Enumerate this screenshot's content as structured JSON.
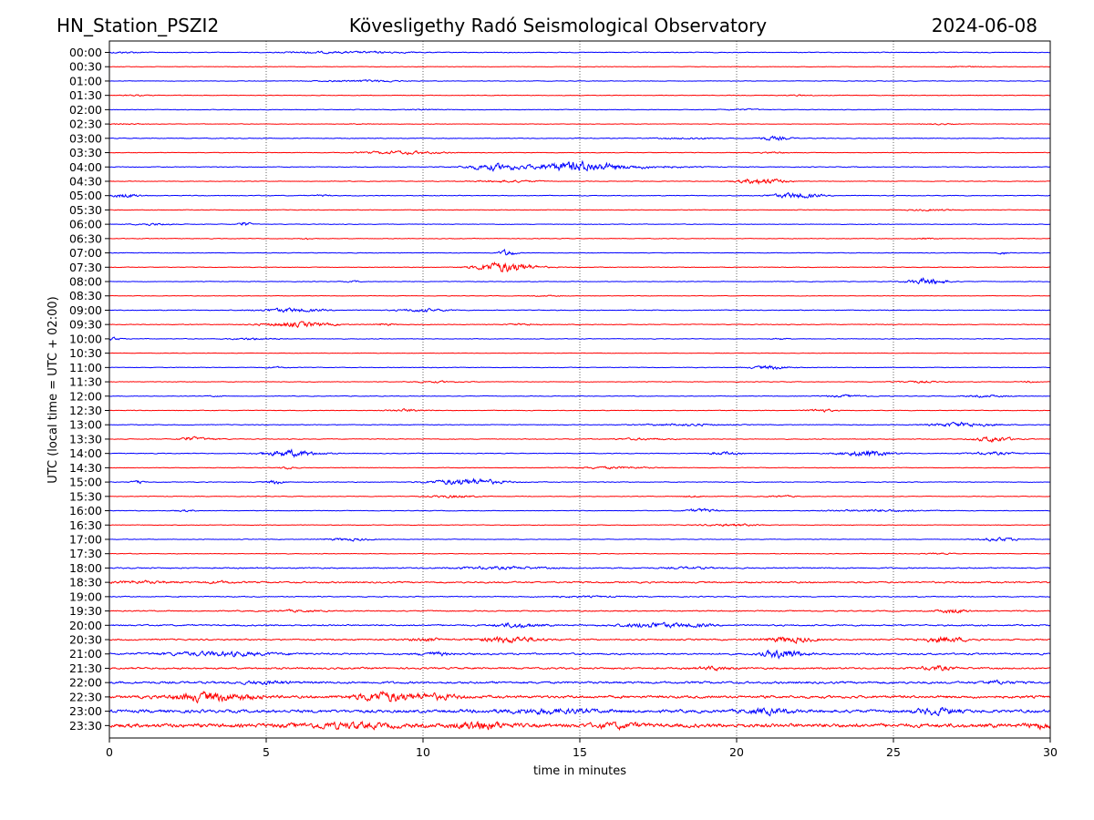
{
  "header": {
    "station": "HN_Station_PSZI2",
    "observatory": "Kövesligethy Radó Seismological Observatory",
    "date": "2024-06-08"
  },
  "chart_data": {
    "type": "line",
    "subtype": "helicorder",
    "title": "Kövesligethy Radó Seismological Observatory",
    "xlabel": "time in minutes",
    "ylabel": "UTC (local time = UTC + 02:00)",
    "xlim": [
      0,
      30
    ],
    "xticks": [
      0,
      5,
      10,
      15,
      20,
      25,
      30
    ],
    "x_gridlines": [
      5,
      10,
      15,
      20,
      25
    ],
    "line_colors": [
      "#0000ff",
      "#ff0000"
    ],
    "rows": [
      {
        "label": "00:00",
        "noise": 0.6,
        "events": [
          [
            0.4,
            1.5,
            0.5
          ],
          [
            6.5,
            2.0,
            0.6
          ],
          [
            8.5,
            2.5,
            0.6
          ]
        ]
      },
      {
        "label": "00:30",
        "noise": 0.4,
        "events": [
          [
            27.2,
            1.2,
            0.4
          ]
        ]
      },
      {
        "label": "01:00",
        "noise": 0.5,
        "events": [
          [
            7.5,
            2.0,
            0.5
          ],
          [
            8.6,
            1.5,
            0.6
          ]
        ]
      },
      {
        "label": "01:30",
        "noise": 0.5,
        "events": [
          [
            0.8,
            1.0,
            0.4
          ],
          [
            22.0,
            1.0,
            0.4
          ]
        ]
      },
      {
        "label": "02:00",
        "noise": 0.5,
        "events": [
          [
            10.0,
            1.2,
            0.4
          ],
          [
            20.2,
            1.2,
            0.5
          ]
        ]
      },
      {
        "label": "02:30",
        "noise": 0.4,
        "events": [
          [
            0.5,
            1.0,
            0.4
          ],
          [
            8.0,
            1.0,
            0.3
          ],
          [
            26.5,
            1.0,
            0.4
          ]
        ]
      },
      {
        "label": "03:00",
        "noise": 0.6,
        "events": [
          [
            18.5,
            2.0,
            0.6
          ],
          [
            21.2,
            1.0,
            1.5
          ]
        ]
      },
      {
        "label": "03:30",
        "noise": 0.5,
        "events": [
          [
            9.4,
            2.5,
            1.2
          ],
          [
            21.2,
            0.8,
            0.6
          ]
        ]
      },
      {
        "label": "04:00",
        "noise": 0.6,
        "events": [
          [
            12.3,
            1.8,
            2.5
          ],
          [
            14.9,
            2.5,
            4.0
          ],
          [
            17.0,
            3.0,
            0.8
          ]
        ]
      },
      {
        "label": "04:30",
        "noise": 0.5,
        "events": [
          [
            12.7,
            2.0,
            0.8
          ],
          [
            20.8,
            1.5,
            2.2
          ]
        ]
      },
      {
        "label": "05:00",
        "noise": 0.6,
        "events": [
          [
            0.5,
            1.0,
            1.5
          ],
          [
            21.9,
            1.5,
            2.2
          ],
          [
            6.8,
            0.5,
            0.6
          ]
        ]
      },
      {
        "label": "05:30",
        "noise": 0.5,
        "events": [
          [
            26.2,
            1.5,
            0.6
          ]
        ]
      },
      {
        "label": "06:00",
        "noise": 0.5,
        "events": [
          [
            1.4,
            1.2,
            0.8
          ],
          [
            4.3,
            0.4,
            1.8
          ]
        ]
      },
      {
        "label": "06:30",
        "noise": 0.5,
        "events": [
          [
            6.3,
            0.4,
            0.6
          ],
          [
            26.0,
            0.8,
            0.5
          ]
        ]
      },
      {
        "label": "07:00",
        "noise": 0.5,
        "events": [
          [
            12.7,
            0.5,
            2.5
          ],
          [
            28.5,
            0.4,
            1.0
          ]
        ]
      },
      {
        "label": "07:30",
        "noise": 0.5,
        "events": [
          [
            12.6,
            1.8,
            4.0
          ]
        ]
      },
      {
        "label": "08:00",
        "noise": 0.5,
        "events": [
          [
            7.8,
            0.5,
            0.5
          ],
          [
            26.1,
            1.2,
            2.5
          ]
        ]
      },
      {
        "label": "08:30",
        "noise": 0.4,
        "events": [
          [
            14.0,
            1.0,
            0.4
          ]
        ]
      },
      {
        "label": "09:00",
        "noise": 0.6,
        "events": [
          [
            5.8,
            2.0,
            1.5
          ],
          [
            10.0,
            1.5,
            1.2
          ]
        ]
      },
      {
        "label": "09:30",
        "noise": 0.6,
        "events": [
          [
            6.0,
            2.2,
            1.8
          ],
          [
            8.8,
            0.6,
            0.8
          ],
          [
            13.2,
            1.0,
            0.6
          ]
        ]
      },
      {
        "label": "10:00",
        "noise": 0.5,
        "events": [
          [
            0.1,
            0.5,
            1.2
          ],
          [
            4.6,
            1.5,
            0.8
          ],
          [
            21.4,
            0.5,
            0.6
          ]
        ]
      },
      {
        "label": "10:30",
        "noise": 0.4,
        "events": []
      },
      {
        "label": "11:00",
        "noise": 0.5,
        "events": [
          [
            5.3,
            0.8,
            0.5
          ],
          [
            21.1,
            1.2,
            1.5
          ]
        ]
      },
      {
        "label": "11:30",
        "noise": 0.5,
        "events": [
          [
            10.4,
            1.5,
            0.6
          ],
          [
            25.8,
            1.5,
            0.7
          ],
          [
            29.4,
            0.5,
            0.6
          ]
        ]
      },
      {
        "label": "12:00",
        "noise": 0.5,
        "events": [
          [
            3.4,
            0.4,
            0.6
          ],
          [
            23.5,
            1.5,
            0.8
          ],
          [
            28.0,
            1.5,
            0.8
          ]
        ]
      },
      {
        "label": "12:30",
        "noise": 0.5,
        "events": [
          [
            9.5,
            1.2,
            1.0
          ],
          [
            22.7,
            0.8,
            1.2
          ]
        ]
      },
      {
        "label": "13:00",
        "noise": 0.6,
        "events": [
          [
            18.3,
            2.5,
            0.8
          ],
          [
            27.2,
            2.0,
            1.6
          ]
        ]
      },
      {
        "label": "13:30",
        "noise": 0.6,
        "events": [
          [
            2.5,
            0.6,
            1.2
          ],
          [
            3.0,
            1.0,
            0.8
          ],
          [
            17.0,
            2.0,
            0.6
          ],
          [
            28.2,
            1.2,
            2.0
          ]
        ]
      },
      {
        "label": "14:00",
        "noise": 0.6,
        "events": [
          [
            5.8,
            1.8,
            2.5
          ],
          [
            19.6,
            1.0,
            1.2
          ],
          [
            24.1,
            1.6,
            2.3
          ],
          [
            28.2,
            1.5,
            1.0
          ]
        ]
      },
      {
        "label": "14:30",
        "noise": 0.5,
        "events": [
          [
            5.7,
            0.5,
            1.0
          ],
          [
            16.0,
            2.5,
            0.8
          ]
        ]
      },
      {
        "label": "15:00",
        "noise": 0.6,
        "events": [
          [
            0.9,
            0.4,
            1.0
          ],
          [
            5.3,
            0.6,
            1.5
          ],
          [
            11.4,
            2.2,
            2.5
          ]
        ]
      },
      {
        "label": "15:30",
        "noise": 0.5,
        "events": [
          [
            10.9,
            1.5,
            1.0
          ],
          [
            18.6,
            0.8,
            0.6
          ],
          [
            21.4,
            1.0,
            0.6
          ]
        ]
      },
      {
        "label": "16:00",
        "noise": 0.5,
        "events": [
          [
            2.4,
            0.8,
            0.6
          ],
          [
            18.9,
            1.0,
            1.4
          ],
          [
            24.5,
            3.0,
            0.8
          ]
        ]
      },
      {
        "label": "16:30",
        "noise": 0.5,
        "events": [
          [
            19.8,
            2.0,
            0.8
          ]
        ]
      },
      {
        "label": "17:00",
        "noise": 0.5,
        "events": [
          [
            7.6,
            1.5,
            1.0
          ],
          [
            28.4,
            1.2,
            1.4
          ]
        ]
      },
      {
        "label": "17:30",
        "noise": 0.5,
        "events": [
          [
            26.5,
            1.0,
            0.4
          ]
        ]
      },
      {
        "label": "18:00",
        "noise": 1.0,
        "events": [
          [
            12.5,
            3.0,
            0.8
          ],
          [
            18.5,
            1.5,
            0.6
          ]
        ]
      },
      {
        "label": "18:30",
        "noise": 1.3,
        "events": [
          [
            1.0,
            2.0,
            0.8
          ],
          [
            3.5,
            1.0,
            0.7
          ]
        ]
      },
      {
        "label": "19:00",
        "noise": 0.8,
        "events": [
          [
            15.0,
            3.0,
            0.4
          ]
        ]
      },
      {
        "label": "19:30",
        "noise": 0.9,
        "events": [
          [
            6.0,
            1.5,
            0.6
          ],
          [
            26.9,
            1.0,
            1.6
          ]
        ]
      },
      {
        "label": "20:00",
        "noise": 1.2,
        "events": [
          [
            13.0,
            1.4,
            1.6
          ],
          [
            17.3,
            2.0,
            1.8
          ],
          [
            18.7,
            1.2,
            1.0
          ]
        ]
      },
      {
        "label": "20:30",
        "noise": 1.2,
        "events": [
          [
            10.1,
            1.0,
            1.2
          ],
          [
            12.8,
            2.0,
            2.2
          ],
          [
            21.7,
            1.6,
            2.0
          ],
          [
            26.6,
            1.6,
            1.8
          ]
        ]
      },
      {
        "label": "21:00",
        "noise": 1.4,
        "events": [
          [
            3.5,
            3.5,
            1.5
          ],
          [
            10.4,
            1.0,
            1.2
          ],
          [
            21.5,
            1.2,
            3.5
          ]
        ]
      },
      {
        "label": "21:30",
        "noise": 1.5,
        "events": [
          [
            19.3,
            1.0,
            1.2
          ],
          [
            26.4,
            1.0,
            1.5
          ]
        ]
      },
      {
        "label": "22:00",
        "noise": 1.8,
        "events": [
          [
            5.0,
            1.5,
            1.0
          ],
          [
            28.3,
            1.0,
            1.0
          ]
        ]
      },
      {
        "label": "22:30",
        "noise": 2.2,
        "events": [
          [
            3.3,
            2.5,
            3.2
          ],
          [
            8.8,
            2.0,
            3.4
          ],
          [
            10.5,
            1.5,
            1.5
          ]
        ]
      },
      {
        "label": "23:00",
        "noise": 2.5,
        "events": [
          [
            14.0,
            3.0,
            1.5
          ],
          [
            21.0,
            1.5,
            1.6
          ],
          [
            26.4,
            1.2,
            2.2
          ]
        ]
      },
      {
        "label": "23:30",
        "noise": 3.2,
        "events": [
          [
            7.5,
            3.0,
            1.5
          ],
          [
            11.8,
            1.5,
            3.0
          ],
          [
            16.2,
            1.5,
            1.5
          ],
          [
            29.7,
            0.8,
            1.5
          ]
        ]
      }
    ]
  }
}
